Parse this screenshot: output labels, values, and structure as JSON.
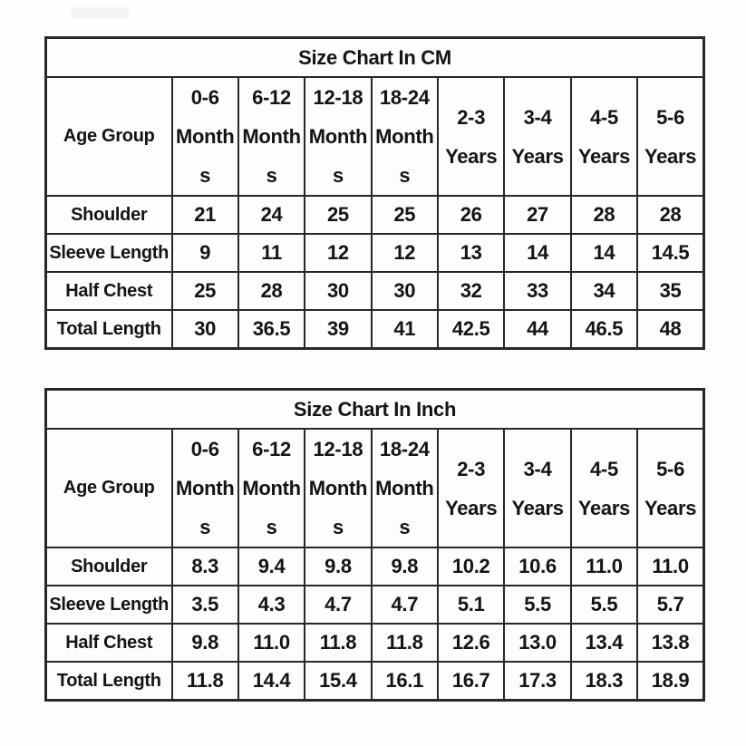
{
  "page": {
    "background_color": "#fefefe",
    "border_color": "#282828",
    "text_color": "#141414",
    "watermark_color": "#f5f5f5"
  },
  "chart_data": [
    {
      "type": "table",
      "title": "Size Chart In CM",
      "unit": "cm",
      "corner_header": "Age Group",
      "column_headers": [
        "0-6\nMonth\ns",
        "6-12\nMonth\ns",
        "12-18\nMonth\ns",
        "18-24\nMonth\ns",
        "2-3\nYears",
        "3-4\nYears",
        "4-5\nYears",
        "5-6\nYears"
      ],
      "rows": [
        {
          "label": "Shoulder",
          "values": [
            "21",
            "24",
            "25",
            "25",
            "26",
            "27",
            "28",
            "28"
          ]
        },
        {
          "label": "Sleeve Length",
          "values": [
            "9",
            "11",
            "12",
            "12",
            "13",
            "14",
            "14",
            "14.5"
          ]
        },
        {
          "label": "Half Chest",
          "values": [
            "25",
            "28",
            "30",
            "30",
            "32",
            "33",
            "34",
            "35"
          ]
        },
        {
          "label": "Total Length",
          "values": [
            "30",
            "36.5",
            "39",
            "41",
            "42.5",
            "44",
            "46.5",
            "48"
          ]
        }
      ]
    },
    {
      "type": "table",
      "title": "Size Chart In Inch",
      "unit": "inch",
      "corner_header": "Age Group",
      "column_headers": [
        "0-6\nMonth\ns",
        "6-12\nMonth\ns",
        "12-18\nMonth\ns",
        "18-24\nMonth\ns",
        "2-3\nYears",
        "3-4\nYears",
        "4-5\nYears",
        "5-6\nYears"
      ],
      "rows": [
        {
          "label": "Shoulder",
          "values": [
            "8.3",
            "9.4",
            "9.8",
            "9.8",
            "10.2",
            "10.6",
            "11.0",
            "11.0"
          ]
        },
        {
          "label": "Sleeve Length",
          "values": [
            "3.5",
            "4.3",
            "4.7",
            "4.7",
            "5.1",
            "5.5",
            "5.5",
            "5.7"
          ]
        },
        {
          "label": "Half Chest",
          "values": [
            "9.8",
            "11.0",
            "11.8",
            "11.8",
            "12.6",
            "13.0",
            "13.4",
            "13.8"
          ]
        },
        {
          "label": "Total Length",
          "values": [
            "11.8",
            "14.4",
            "15.4",
            "16.1",
            "16.7",
            "17.3",
            "18.3",
            "18.9"
          ]
        }
      ]
    }
  ]
}
